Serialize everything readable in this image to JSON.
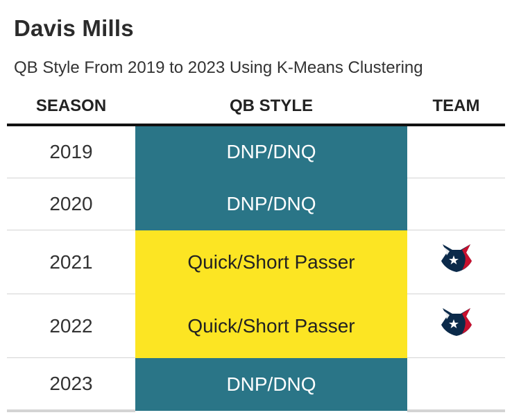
{
  "title": "Davis Mills",
  "subtitle": "QB Style From 2019 to 2023 Using K-Means Clustering",
  "columns": {
    "season": "SEASON",
    "style": "QB STYLE",
    "team": "TEAM"
  },
  "style_colors": {
    "DNP/DNQ": "#2a7587",
    "Quick/Short Passer": "#fce523"
  },
  "style_text_colors": {
    "DNP/DNQ": "#ffffff",
    "Quick/Short Passer": "#222222"
  },
  "rows": [
    {
      "season": "2019",
      "style": "DNP/DNQ",
      "team_icon": ""
    },
    {
      "season": "2020",
      "style": "DNP/DNQ",
      "team_icon": ""
    },
    {
      "season": "2021",
      "style": "Quick/Short Passer",
      "team_icon": "houston-texans-logo-icon"
    },
    {
      "season": "2022",
      "style": "Quick/Short Passer",
      "team_icon": "houston-texans-logo-icon"
    },
    {
      "season": "2023",
      "style": "DNP/DNQ",
      "team_icon": ""
    }
  ]
}
